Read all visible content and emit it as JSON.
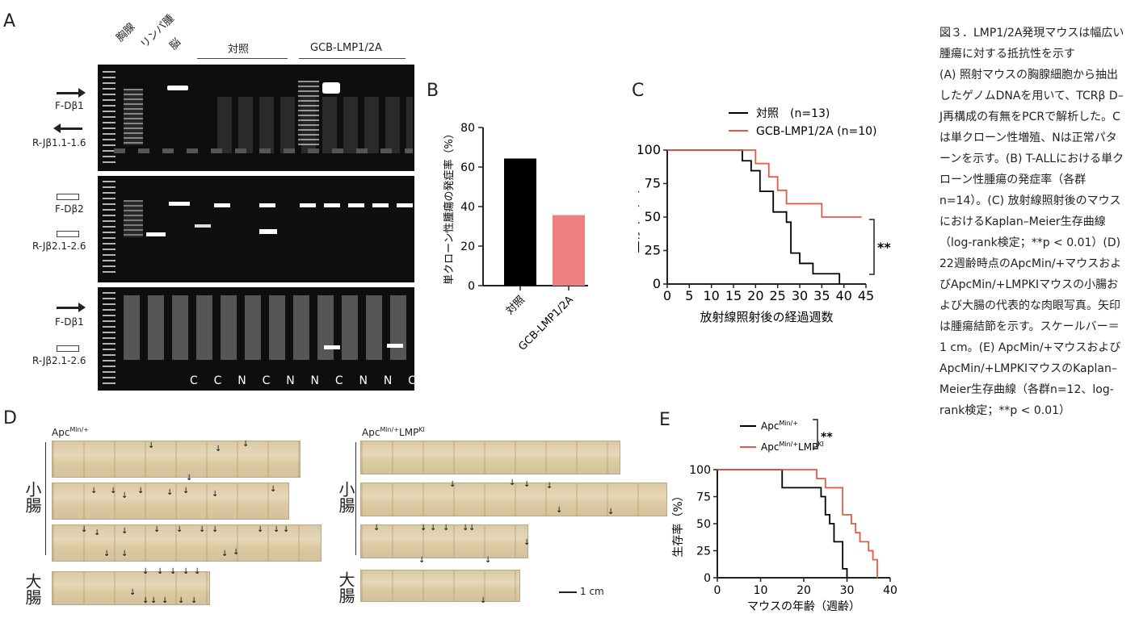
{
  "panel_labels": {
    "a": "A",
    "b": "B",
    "c": "C",
    "d": "D",
    "e": "E"
  },
  "gel": {
    "lane_headers": {
      "thymus": "胸腺",
      "lymphoma": "リンパ腫",
      "brain": "脳",
      "control": "対照",
      "gcb": "GCB-LMP1/2A"
    },
    "primers": {
      "f_db1": "F-Dβ1",
      "r_jb11": "R-Jβ1.1-1.6",
      "f_db2": "F-Dβ2",
      "r_jb21_a": "R-Jβ2.1-2.6",
      "f_db1_b": "F-Dβ1",
      "r_jb21_b": "R-Jβ2.1-2.6"
    },
    "lane_calls": [
      "C",
      "C",
      "N",
      "C",
      "N",
      "N",
      "C",
      "N",
      "N",
      "C"
    ]
  },
  "chart_data": [
    {
      "type": "bar",
      "panel": "B",
      "categories": [
        "対照",
        "GCB-LMP1/2A"
      ],
      "values": [
        64.3,
        35.7
      ],
      "ylabel": "単クローン性腫瘍の発症率（%）",
      "ylim": [
        0,
        80
      ],
      "yticks": [
        0,
        20,
        40,
        60,
        80
      ],
      "colors": [
        "#000000",
        "#f08080"
      ]
    },
    {
      "type": "line",
      "panel": "C",
      "xlabel": "放射線照射後の経過週数",
      "ylabel": "生存率（%）",
      "xlim": [
        0,
        45
      ],
      "ylim": [
        0,
        100
      ],
      "xticks": [
        0,
        5,
        10,
        15,
        20,
        25,
        30,
        35,
        40,
        45
      ],
      "yticks": [
        0,
        25,
        50,
        75,
        100
      ],
      "significance": "**",
      "series": [
        {
          "name": "対照　(n=13)",
          "color": "#000000",
          "x": [
            0,
            16,
            17,
            18,
            19,
            21,
            22,
            24,
            26,
            27,
            28,
            30,
            33,
            39
          ],
          "y": [
            100,
            100,
            92,
            92,
            84.6,
            69.2,
            69.2,
            53.8,
            53.8,
            46.2,
            23.1,
            15.4,
            7.7,
            0
          ]
        },
        {
          "name": "GCB-LMP1/2A (n=10)",
          "color": "#e05a44",
          "x": [
            0,
            18,
            20,
            23,
            25,
            27,
            35,
            44
          ],
          "y": [
            100,
            100,
            90,
            80,
            70,
            60,
            50,
            50
          ]
        }
      ]
    },
    {
      "type": "line",
      "panel": "E",
      "xlabel": "マウスの年齢（週齢）",
      "ylabel": "生存率（%）",
      "xlim": [
        0,
        40
      ],
      "ylim": [
        0,
        100
      ],
      "xticks": [
        0,
        10,
        20,
        30,
        40
      ],
      "yticks": [
        0,
        25,
        50,
        75,
        100
      ],
      "significance": "**",
      "series": [
        {
          "name": "Apc",
          "sup": "Min/+",
          "color": "#000000",
          "x": [
            0,
            15,
            22,
            24,
            25,
            26,
            27,
            29,
            30
          ],
          "y": [
            100,
            83.3,
            83.3,
            75,
            58.3,
            50,
            33.3,
            8.3,
            0
          ]
        },
        {
          "name": "Apc",
          "sup": "Min/+",
          "suffix": "LMP",
          "sup2": "KI",
          "color": "#e05a44",
          "x": [
            0,
            23,
            25,
            29,
            31,
            32,
            33,
            35,
            36,
            37
          ],
          "y": [
            100,
            91.7,
            83.3,
            58.3,
            50,
            41.7,
            33.3,
            25,
            16.7,
            0
          ]
        }
      ]
    }
  ],
  "panel_d": {
    "left_title_base": "Apc",
    "left_title_sup": "Min/+",
    "right_title_base": "Apc",
    "right_title_sup": "Min/+",
    "right_title_mid": "LMP",
    "right_title_sup2": "KI",
    "small_intestine": "小腸",
    "large_intestine": "大腸",
    "scale_bar": "1 cm"
  },
  "caption": {
    "title": "図３．LMP1/2A発現マウスは幅広い腫瘍に対する抵抗性を示す",
    "body": "(A) 照射マウスの胸腺細胞から抽出したゲノムDNAを用いて、TCRβ D–J再構成の有無をPCRで解析した。Cは単クローン性増殖、Nは正常パターンを示す。(B) T-ALLにおける単クローン性腫瘍の発症率（各群n=14）。(C) 放射線照射後のマウスにおけるKaplan–Meier生存曲線（log-rank検定；**p < 0.01）(D) 22週齢時点のApcMin/+マウスおよびApcMin/+LMPKIマウスの小腸および大腸の代表的な肉眼写真。矢印は腫瘍結節を示す。スケールバー＝1 cm。(E) ApcMin/+マウスおよびApcMin/+LMPKIマウスのKaplan–Meier生存曲線（各群n=12、log-rank検定；**p < 0.01）"
  }
}
